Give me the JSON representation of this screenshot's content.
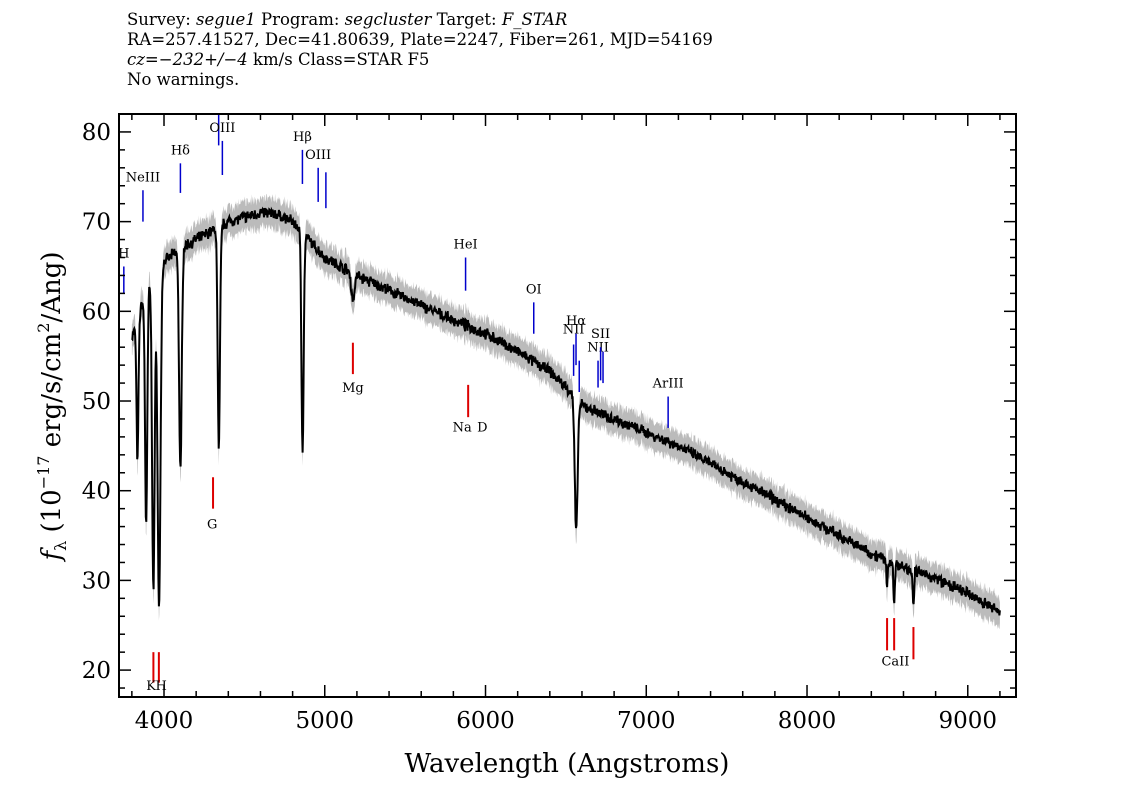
{
  "header": {
    "survey_label": "Survey:",
    "survey": "segue1",
    "program_label": "Program:",
    "program": "segcluster",
    "target_label": "Target:",
    "target": "F_STAR",
    "line2": "RA=257.41527, Dec=41.80639, Plate=2247, Fiber=261, MJD=54169",
    "cz_prefix": "cz=",
    "cz_value": "−232+/−4",
    "cz_suffix": " km/s Class=STAR F5",
    "line4": "No warnings."
  },
  "chart_data": {
    "type": "line",
    "xlabel": "Wavelength (Angstroms)",
    "ylabel_parts": [
      "f",
      "λ",
      " (10",
      "−17",
      " erg/s/cm",
      "2",
      "/Ang)"
    ],
    "xlim": [
      3720,
      9300
    ],
    "ylim": [
      17,
      82
    ],
    "xticks": [
      4000,
      5000,
      6000,
      7000,
      8000,
      9000
    ],
    "yticks": [
      20,
      30,
      40,
      50,
      60,
      70,
      80
    ],
    "colors": {
      "flux": "#000000",
      "error_band": "#bbbbbb",
      "emission": "#0000cc",
      "absorption": "#dd0000"
    },
    "continuum": [
      [
        3800,
        57
      ],
      [
        3900,
        63
      ],
      [
        4000,
        65.5
      ],
      [
        4100,
        67
      ],
      [
        4200,
        68
      ],
      [
        4300,
        69
      ],
      [
        4400,
        70
      ],
      [
        4500,
        70.5
      ],
      [
        4600,
        71
      ],
      [
        4700,
        70.8
      ],
      [
        4800,
        70
      ],
      [
        4900,
        68
      ],
      [
        5000,
        66
      ],
      [
        5200,
        64
      ],
      [
        5500,
        61.5
      ],
      [
        5800,
        59
      ],
      [
        6000,
        57.5
      ],
      [
        6200,
        55.5
      ],
      [
        6400,
        53.3
      ],
      [
        6560,
        50.5
      ],
      [
        6600,
        49.5
      ],
      [
        7000,
        46.5
      ],
      [
        7200,
        45
      ],
      [
        7500,
        42
      ],
      [
        7800,
        39
      ],
      [
        8000,
        37
      ],
      [
        8200,
        35
      ],
      [
        8400,
        33
      ],
      [
        8600,
        31.5
      ],
      [
        8800,
        30.2
      ],
      [
        9000,
        28.5
      ],
      [
        9200,
        26.5
      ]
    ],
    "absorption_features": [
      {
        "name": "H9",
        "x": 3835,
        "depth": 16,
        "width": 6
      },
      {
        "name": "H8",
        "x": 3889,
        "depth": 26,
        "width": 7
      },
      {
        "name": "K",
        "x": 3934,
        "depth": 35,
        "width": 8
      },
      {
        "name": "H",
        "x": 3969,
        "depth": 38,
        "width": 9
      },
      {
        "name": "Hdelta",
        "x": 4102,
        "depth": 25,
        "width": 8
      },
      {
        "name": "Hgamma",
        "x": 4341,
        "depth": 25,
        "width": 7
      },
      {
        "name": "Hbeta",
        "x": 4862,
        "depth": 24,
        "width": 7
      },
      {
        "name": "Mg",
        "x": 5175,
        "depth": 3,
        "width": 10
      },
      {
        "name": "Halpha",
        "x": 6564,
        "depth": 15,
        "width": 9
      },
      {
        "name": "CaII",
        "x": 8498,
        "depth": 3,
        "width": 4
      },
      {
        "name": "CaII",
        "x": 8542,
        "depth": 5,
        "width": 4
      },
      {
        "name": "CaII",
        "x": 8662,
        "depth": 4,
        "width": 4
      }
    ],
    "emission_lines": [
      {
        "label": "H",
        "x": 3750,
        "y_top": 65,
        "y_bot": 62,
        "label_y": 66
      },
      {
        "label": "NeIII",
        "x": 3869,
        "y_top": 73.5,
        "y_bot": 70,
        "label_y": 74.5
      },
      {
        "label": "Hδ",
        "x": 4102,
        "y_top": 76.5,
        "y_bot": 73.2,
        "label_y": 77.5
      },
      {
        "label": "",
        "x": 4340,
        "y_top": 82,
        "y_bot": 78.5,
        "label_y": 0
      },
      {
        "label": "OIII",
        "x": 4363,
        "y_top": 79,
        "y_bot": 75.2,
        "label_y": 80
      },
      {
        "label": "Hβ",
        "x": 4861,
        "y_top": 78,
        "y_bot": 74.2,
        "label_y": 79
      },
      {
        "label": "OIII",
        "x": 4959,
        "y_top": 76,
        "y_bot": 72.2,
        "label_y": 77
      },
      {
        "label": "",
        "x": 5007,
        "y_top": 75.5,
        "y_bot": 71.5,
        "label_y": 0
      },
      {
        "label": "HeI",
        "x": 5876,
        "y_top": 66,
        "y_bot": 62.3,
        "label_y": 67
      },
      {
        "label": "OI",
        "x": 6300,
        "y_top": 61,
        "y_bot": 57.5,
        "label_y": 62
      },
      {
        "label": "NII",
        "x": 6548,
        "y_top": 56.3,
        "y_bot": 52.8,
        "label_y": 57.5
      },
      {
        "label": "Hα",
        "x": 6563,
        "y_top": 57.5,
        "y_bot": 54,
        "label_y": 58.5
      },
      {
        "label": "",
        "x": 6583,
        "y_top": 54.5,
        "y_bot": 51,
        "label_y": 0
      },
      {
        "label": "NII",
        "x": 6700,
        "y_top": 54.5,
        "y_bot": 51.5,
        "label_y": 55.5
      },
      {
        "label": "SII",
        "x": 6716,
        "y_top": 56,
        "y_bot": 52.3,
        "label_y": 57
      },
      {
        "label": "",
        "x": 6731,
        "y_top": 55.5,
        "y_bot": 52,
        "label_y": 0
      },
      {
        "label": "ArIII",
        "x": 7136,
        "y_top": 50.5,
        "y_bot": 47,
        "label_y": 51.5
      }
    ],
    "absorption_lines": [
      {
        "label": "K",
        "x": 3934,
        "y_top": 22,
        "y_bot": 18.6
      },
      {
        "label": "H",
        "x": 3968,
        "y_top": 22,
        "y_bot": 18.6
      },
      {
        "label": "G",
        "x": 4305,
        "y_top": 41.5,
        "y_bot": 38
      },
      {
        "label": "Mg",
        "x": 5175,
        "y_top": 56.5,
        "y_bot": 53
      },
      {
        "label": "Na D",
        "x": 5892,
        "y_top": 51.8,
        "y_bot": 48.2
      },
      {
        "label": "",
        "x": 8498,
        "y_top": 25.8,
        "y_bot": 22.2
      },
      {
        "label": "CaII",
        "x": 8542,
        "y_top": 25.8,
        "y_bot": 22.2
      },
      {
        "label": "",
        "x": 8662,
        "y_top": 24.8,
        "y_bot": 21.2
      }
    ],
    "absorption_label_positions": [
      {
        "text": "K",
        "x": 3920,
        "y": 17.8
      },
      {
        "text": "H",
        "x": 3982,
        "y": 17.8
      },
      {
        "text": "G",
        "x": 4300,
        "y": 35.8
      },
      {
        "text": "Mg",
        "x": 5175,
        "y": 51.0
      },
      {
        "text": "Na",
        "x": 5855,
        "y": 46.6
      },
      {
        "text": "D",
        "x": 5980,
        "y": 46.6
      },
      {
        "text": "CaII",
        "x": 8550,
        "y": 20.5
      }
    ]
  }
}
